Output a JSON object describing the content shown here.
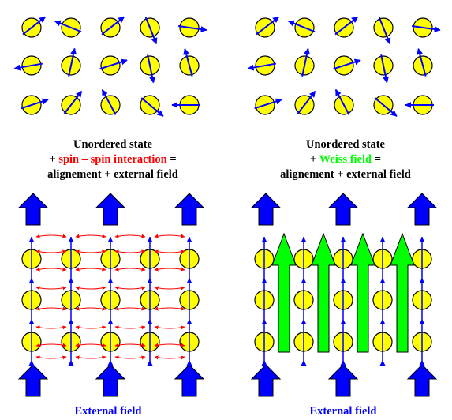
{
  "left_panel": {
    "caption_line1": "Unordered state",
    "caption_line2": {
      "prefix": "+ ",
      "highlight": "spin – spin interaction",
      "suffix": " ="
    },
    "caption_line3": "alignement + external field",
    "bottom_label": "External field"
  },
  "right_panel": {
    "caption_line1": "Unordered state",
    "caption_line2": {
      "prefix": "+ ",
      "highlight": "Weiss field",
      "suffix": " ="
    },
    "caption_line3": "alignement + external field",
    "bottom_label": "External field"
  },
  "colors": {
    "spin_fill": "#ffff00",
    "spin_arrow": "#0000ff",
    "external_field_arrow": "#0000ff",
    "interaction_arrows": "#ff0000",
    "interaction_text": "#ff0000",
    "weiss_field_arrow": "#00ff00",
    "weiss_text": "#00ff00",
    "caption_text": "#000000",
    "bottom_label_text": "#0000ff"
  },
  "icons": [
    "spin-circle-icon",
    "external-field-arrow-icon",
    "weiss-field-arrow-icon",
    "interaction-double-arrow-icon"
  ]
}
